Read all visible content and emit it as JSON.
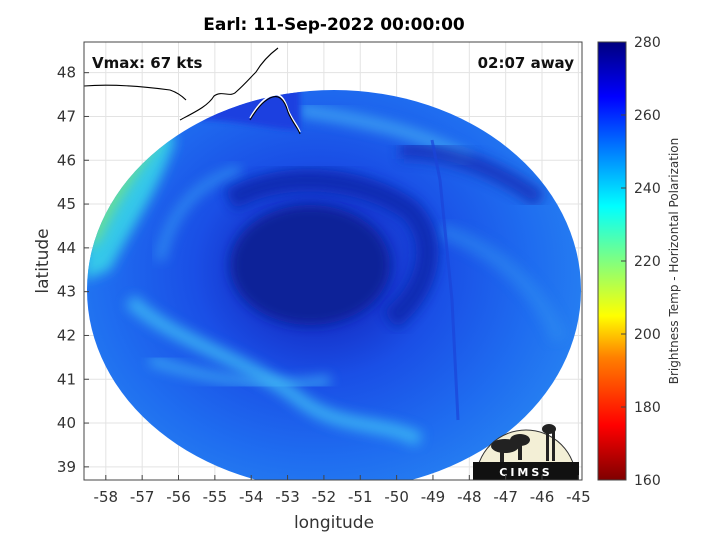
{
  "title": "Earl: 11-Sep-2022 00:00:00",
  "vmax_text": "Vmax: 67 kts",
  "away_text": "02:07 away",
  "x_axis": {
    "label": "longitude",
    "range": [
      -58.6,
      -44.9
    ],
    "ticks": [
      "-58",
      "-57",
      "-56",
      "-55",
      "-54",
      "-53",
      "-52",
      "-51",
      "-50",
      "-49",
      "-48",
      "-47",
      "-46",
      "-45"
    ],
    "tick_values": [
      -58,
      -57,
      -56,
      -55,
      -54,
      -53,
      -52,
      -51,
      -50,
      -49,
      -48,
      -47,
      -46,
      -45
    ]
  },
  "y_axis": {
    "label": "latitude",
    "range": [
      38.7,
      48.7
    ],
    "ticks": [
      "39",
      "40",
      "41",
      "42",
      "43",
      "44",
      "45",
      "46",
      "47",
      "48"
    ],
    "tick_values": [
      39,
      40,
      41,
      42,
      43,
      44,
      45,
      46,
      47,
      48
    ]
  },
  "colorbar": {
    "label": "Brightness Temp - Horizontal Polarization",
    "range": [
      160,
      280
    ],
    "ticks": [
      "280",
      "260",
      "240",
      "220",
      "200",
      "180",
      "160"
    ],
    "tick_values": [
      280,
      260,
      240,
      220,
      200,
      180,
      160
    ],
    "colormap": [
      "#7f0000",
      "#ff0000",
      "#ff8000",
      "#ffff00",
      "#80ff80",
      "#00ffff",
      "#0080ff",
      "#0000ff",
      "#00007f"
    ]
  },
  "logo": {
    "text": "CIMSS"
  },
  "grid": true,
  "colors": {
    "deep_core": "#0a1f9e",
    "cold_band": "#1a3fe0",
    "mid": "#1f6df0",
    "warm_edge": "#2fc7ee",
    "land_warm": "#8ee06a"
  }
}
